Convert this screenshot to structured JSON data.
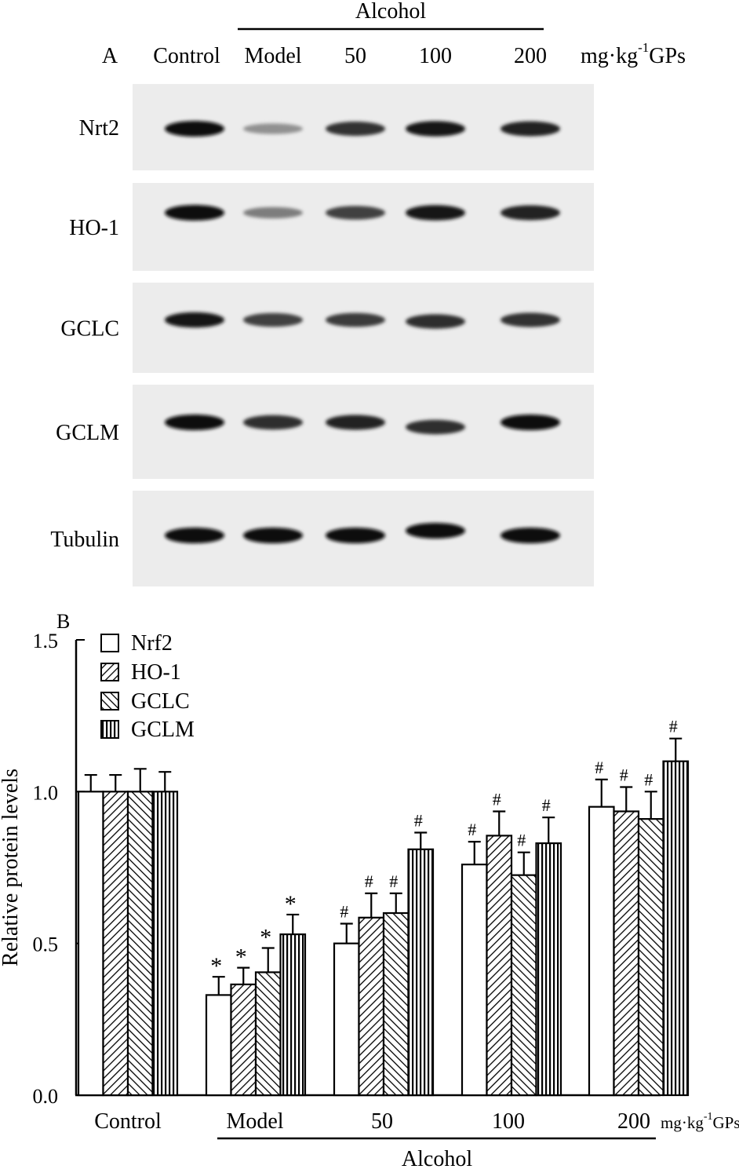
{
  "panel_a": {
    "label": "A",
    "group_label": "Alcohol",
    "unit_label": "mg·kg",
    "unit_superscript": "-1",
    "unit_suffix": "GPs",
    "lanes": [
      "Control",
      "Model",
      "50",
      "100",
      "200"
    ],
    "rows": [
      {
        "label": "Nrt2",
        "intensity": [
          1.0,
          0.35,
          0.82,
          0.95,
          0.9
        ]
      },
      {
        "label": "HO-1",
        "intensity": [
          1.0,
          0.45,
          0.75,
          0.95,
          0.9
        ]
      },
      {
        "label": "GCLC",
        "intensity": [
          0.95,
          0.75,
          0.78,
          0.85,
          0.82
        ]
      },
      {
        "label": "GCLM",
        "intensity": [
          1.0,
          0.85,
          0.9,
          0.85,
          1.0
        ]
      },
      {
        "label": "Tubulin",
        "intensity": [
          1.0,
          1.0,
          1.0,
          1.0,
          1.0
        ]
      }
    ]
  },
  "chart_data": {
    "type": "bar",
    "panel_label": "B",
    "title": "",
    "xlabel": "",
    "ylabel": "Relative protein levels",
    "ylim": [
      0,
      1.5
    ],
    "yticks": [
      "0.0",
      "0.5",
      "1.0",
      "1.5"
    ],
    "ytick_values": [
      0,
      0.5,
      1.0,
      1.5
    ],
    "categories": [
      "Control",
      "Model",
      "50",
      "100",
      "200"
    ],
    "group_label": "Alcohol",
    "unit_label": "mg·kg",
    "unit_superscript": "-1",
    "unit_suffix": "GPs",
    "legend_position": "top-left",
    "series": [
      {
        "name": "Nrf2",
        "pattern": "open",
        "values": [
          1.0,
          0.33,
          0.5,
          0.76,
          0.95
        ],
        "errors": [
          0.055,
          0.06,
          0.065,
          0.075,
          0.09
        ],
        "marks": [
          "",
          "*",
          "#",
          "#",
          "#"
        ]
      },
      {
        "name": "HO-1",
        "pattern": "backslash",
        "values": [
          1.0,
          0.365,
          0.585,
          0.855,
          0.935
        ],
        "errors": [
          0.055,
          0.055,
          0.08,
          0.08,
          0.08
        ],
        "marks": [
          "",
          "*",
          "#",
          "#",
          "#"
        ]
      },
      {
        "name": "GCLC",
        "pattern": "slash",
        "values": [
          1.0,
          0.405,
          0.6,
          0.725,
          0.91
        ],
        "errors": [
          0.075,
          0.08,
          0.065,
          0.075,
          0.09
        ],
        "marks": [
          "",
          "*",
          "#",
          "#",
          "#"
        ]
      },
      {
        "name": "GCLM",
        "pattern": "vertical",
        "values": [
          1.0,
          0.53,
          0.81,
          0.83,
          1.1
        ],
        "errors": [
          0.065,
          0.065,
          0.055,
          0.085,
          0.075
        ],
        "marks": [
          "",
          "*",
          "#",
          "#",
          "#"
        ]
      }
    ]
  }
}
